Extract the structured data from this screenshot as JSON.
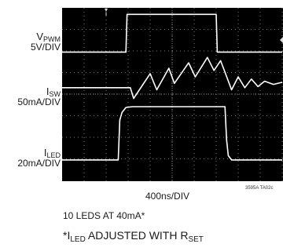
{
  "chart_data": {
    "type": "line",
    "title": "",
    "xlabel": "400ns/DIV",
    "x_units_per_div": "400ns",
    "grid": true,
    "background": "#000000",
    "trace_color": "#ffffff",
    "grid_color": "#9a9a9a",
    "x_divs": 10,
    "y_divs": 8,
    "series": [
      {
        "name": "VPWM",
        "name_main": "V",
        "name_sub": "PWM",
        "scale": "5V/DIV",
        "points": [
          [
            0,
            2.05
          ],
          [
            2.9,
            2.05
          ],
          [
            2.95,
            0.3
          ],
          [
            7.0,
            0.3
          ],
          [
            7.05,
            2.05
          ],
          [
            10,
            2.05
          ]
        ]
      },
      {
        "name": "ISW",
        "name_main": "I",
        "name_sub": "SW",
        "scale": "50mA/DIV",
        "points": [
          [
            0,
            3.7
          ],
          [
            3.1,
            3.7
          ],
          [
            3.25,
            4.2
          ],
          [
            4.0,
            3.05
          ],
          [
            4.3,
            3.8
          ],
          [
            4.85,
            2.8
          ],
          [
            5.1,
            3.5
          ],
          [
            5.75,
            2.55
          ],
          [
            6.05,
            3.2
          ],
          [
            6.6,
            2.3
          ],
          [
            6.9,
            2.9
          ],
          [
            7.2,
            2.45
          ],
          [
            7.35,
            2.85
          ],
          [
            7.7,
            3.8
          ],
          [
            8.0,
            3.2
          ],
          [
            8.3,
            3.7
          ],
          [
            8.6,
            3.3
          ],
          [
            8.9,
            3.65
          ],
          [
            9.2,
            3.4
          ],
          [
            9.6,
            3.55
          ],
          [
            10,
            3.45
          ]
        ]
      },
      {
        "name": "ILED",
        "name_main": "I",
        "name_sub": "LED",
        "scale": "20mA/DIV",
        "points": [
          [
            0,
            7.05
          ],
          [
            2.55,
            7.05
          ],
          [
            2.62,
            5.2
          ],
          [
            2.72,
            4.85
          ],
          [
            2.9,
            4.62
          ],
          [
            3.2,
            4.58
          ],
          [
            7.4,
            4.58
          ],
          [
            7.47,
            6.1
          ],
          [
            7.55,
            6.85
          ],
          [
            7.7,
            7.05
          ],
          [
            10,
            7.05
          ]
        ]
      }
    ],
    "figure_id": "3595A TA02c"
  },
  "notes": {
    "line1": "10 LEDS AT 40mA*",
    "line2_prefix": "*I",
    "line2_sub": "LED",
    "line2_mid": " ADJUSTED WITH R",
    "line2_sub2": "SET"
  }
}
